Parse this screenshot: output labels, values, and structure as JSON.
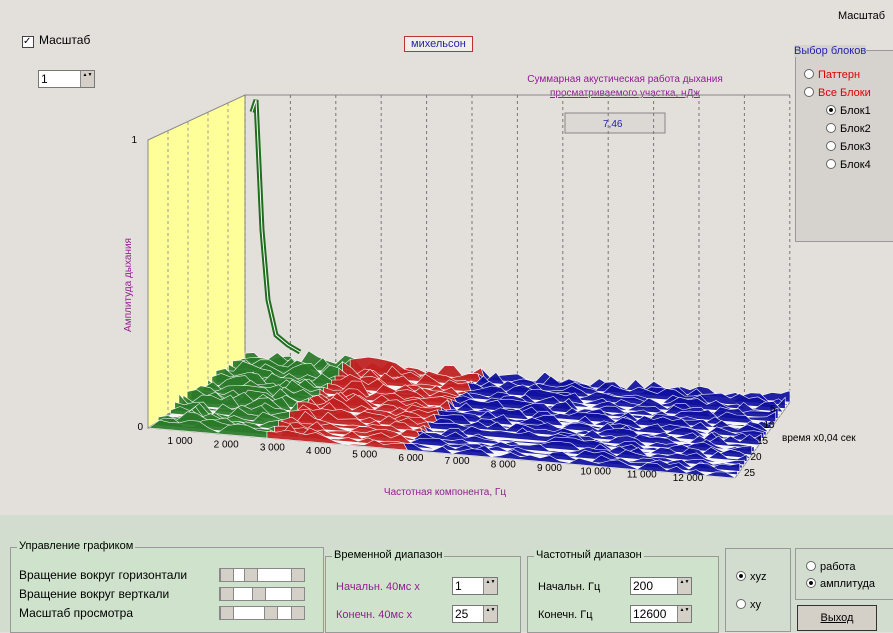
{
  "top": {
    "scale_checkbox": "Масштаб",
    "spinner_value": "1",
    "title_button": "михельсон",
    "top_right_label": "Масштаб"
  },
  "plot": {
    "summary_lines": [
      "Суммарная акустическая работа дыхания",
      "просматриваемого участка, нДж"
    ],
    "summary_value": "7,46",
    "y_axis_label": "Амплитуда дыхания",
    "y_ticks": [
      "1",
      "0"
    ],
    "x_ticks": [
      "1 000",
      "2 000",
      "3 000",
      "4 000",
      "5 000",
      "6 000",
      "7 000",
      "8 000",
      "9 000",
      "10 000",
      "11 000",
      "12 000"
    ],
    "x_axis_label": "Частотная компонента, Гц",
    "z_ticks": [
      "5",
      "10",
      "15",
      "20",
      "25"
    ],
    "z_axis_label": "время x0,04 сек"
  },
  "blocks": {
    "title": "Выбор блоков",
    "top_options": [
      "Паттерн",
      "Все Блоки"
    ],
    "sub_options": [
      "Блок1",
      "Блок2",
      "Блок3",
      "Блок4"
    ]
  },
  "graph_control": {
    "title": "Управление графиком",
    "rows": [
      "Вращение вокруг горизонтали",
      "Вращение вокруг верткали",
      "Масштаб просмотра"
    ]
  },
  "time_range": {
    "title": "Временной диапазон",
    "start_label": "Начальн.  40мс  x",
    "start_value": "1",
    "end_label": "Конечн.   40мс  x",
    "end_value": "25"
  },
  "freq_range": {
    "title": "Частотный диапазон",
    "start_label": "Начальн.  Гц",
    "start_value": "200",
    "end_label": "Конечн.  Гц",
    "end_value": "12600"
  },
  "view_mode": {
    "options": [
      "xyz",
      "xy"
    ]
  },
  "output": {
    "options": [
      "работа",
      "амплитуда"
    ],
    "exit_button": "Выход"
  }
}
